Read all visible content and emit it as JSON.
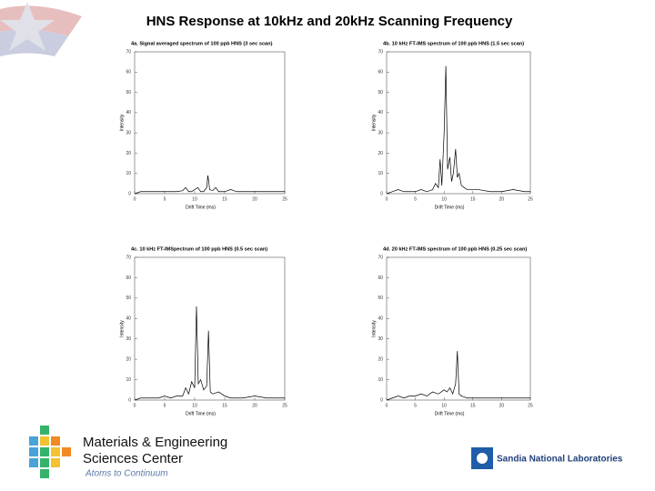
{
  "title": "HNS Response at 10kHz and 20kHz Scanning Frequency",
  "chart_data": [
    {
      "type": "line",
      "title": "4a. Signal averaged spectrum of 100 ppb HNS (3 sec scan)",
      "xlabel": "Drift Time (ms)",
      "ylabel": "Intensity",
      "xlim": [
        0,
        25
      ],
      "ylim": [
        0,
        70
      ],
      "xticks": [
        0,
        5,
        10,
        15,
        20,
        25
      ],
      "yticks": [
        0,
        10,
        20,
        30,
        40,
        50,
        60,
        70
      ],
      "color": "#000000",
      "x": [
        0,
        1,
        2,
        3,
        4,
        5,
        6,
        7,
        8,
        8.5,
        9,
        9.5,
        10,
        10.5,
        11,
        11.5,
        12,
        12.2,
        12.5,
        13,
        13.5,
        14,
        15,
        16,
        17,
        18,
        20,
        22,
        24,
        25
      ],
      "values": [
        0,
        1,
        1,
        1,
        1,
        1,
        1,
        1,
        1.5,
        3,
        1,
        1,
        2,
        3,
        1,
        1,
        3,
        9,
        2,
        1.5,
        3,
        1,
        1,
        2,
        1,
        1,
        1,
        1,
        1,
        1
      ]
    },
    {
      "type": "line",
      "title": "4b. 10 kHz FT-IMS spectrum of 100 ppb HNS (1.5 sec scan)",
      "xlabel": "Drift Time (ms)",
      "ylabel": "Intensity",
      "xlim": [
        0,
        25
      ],
      "ylim": [
        0,
        70
      ],
      "xticks": [
        0,
        5,
        10,
        15,
        20,
        25
      ],
      "yticks": [
        0,
        10,
        20,
        30,
        40,
        50,
        60,
        70
      ],
      "color": "#000000",
      "x": [
        0,
        1,
        2,
        3,
        4,
        5,
        6,
        7,
        8,
        8.5,
        9,
        9.3,
        9.6,
        10,
        10.3,
        10.6,
        11,
        11.3,
        11.6,
        12,
        12.3,
        12.6,
        13,
        13.5,
        14,
        15,
        16,
        18,
        20,
        22,
        24,
        25
      ],
      "values": [
        0,
        1,
        2,
        1,
        1,
        1,
        2,
        1,
        2,
        5,
        3,
        17,
        4,
        30,
        63,
        12,
        18,
        6,
        10,
        22,
        8,
        10,
        4,
        3,
        2,
        2,
        2,
        1,
        1,
        2,
        1,
        1
      ]
    },
    {
      "type": "line",
      "title": "4c. 10 kHz FT-IMSpectrum of 100 ppb HNS (0.5 sec scan)",
      "xlabel": "Drift Time (ms)",
      "ylabel": "Intensity",
      "xlim": [
        0,
        25
      ],
      "ylim": [
        0,
        70
      ],
      "xticks": [
        0,
        5,
        10,
        15,
        20,
        25
      ],
      "yticks": [
        0,
        10,
        20,
        30,
        40,
        50,
        60,
        70
      ],
      "color": "#000000",
      "x": [
        0,
        1,
        2,
        3,
        4,
        5,
        6,
        7,
        8,
        8.5,
        9,
        9.5,
        10,
        10.3,
        10.6,
        11,
        11.5,
        12,
        12.3,
        12.6,
        13,
        14,
        15,
        16,
        18,
        20,
        22,
        24,
        25
      ],
      "values": [
        0,
        1,
        1,
        1,
        1,
        2,
        1,
        2,
        2,
        6,
        3,
        9,
        6,
        46,
        8,
        10,
        5,
        7,
        34,
        4,
        3,
        4,
        2,
        1,
        1,
        2,
        1,
        1,
        1
      ]
    },
    {
      "type": "line",
      "title": "4d. 20 kHz FT-IMS spectrum of 100 ppb HNS (0.25 sec scan)",
      "xlabel": "Drift Time (ms)",
      "ylabel": "Intensity",
      "xlim": [
        0,
        25
      ],
      "ylim": [
        0,
        70
      ],
      "xticks": [
        0,
        5,
        10,
        15,
        20,
        25
      ],
      "yticks": [
        0,
        10,
        20,
        30,
        40,
        50,
        60,
        70
      ],
      "color": "#000000",
      "x": [
        0,
        1,
        2,
        3,
        4,
        5,
        6,
        7,
        8,
        9,
        10,
        10.5,
        11,
        11.5,
        12,
        12.3,
        12.6,
        13,
        14,
        15,
        16,
        18,
        20,
        22,
        24,
        25
      ],
      "values": [
        0,
        1,
        2,
        1,
        2,
        2,
        3,
        2,
        4,
        3,
        5,
        4,
        6,
        3,
        8,
        24,
        3,
        2,
        1,
        1,
        1,
        1,
        1,
        1,
        1,
        1
      ]
    }
  ],
  "footer": {
    "line1": "Materials & Engineering",
    "line2": "Sciences Center",
    "tagline": "Atoms to Continuum",
    "lab": "Sandia National Laboratories"
  }
}
